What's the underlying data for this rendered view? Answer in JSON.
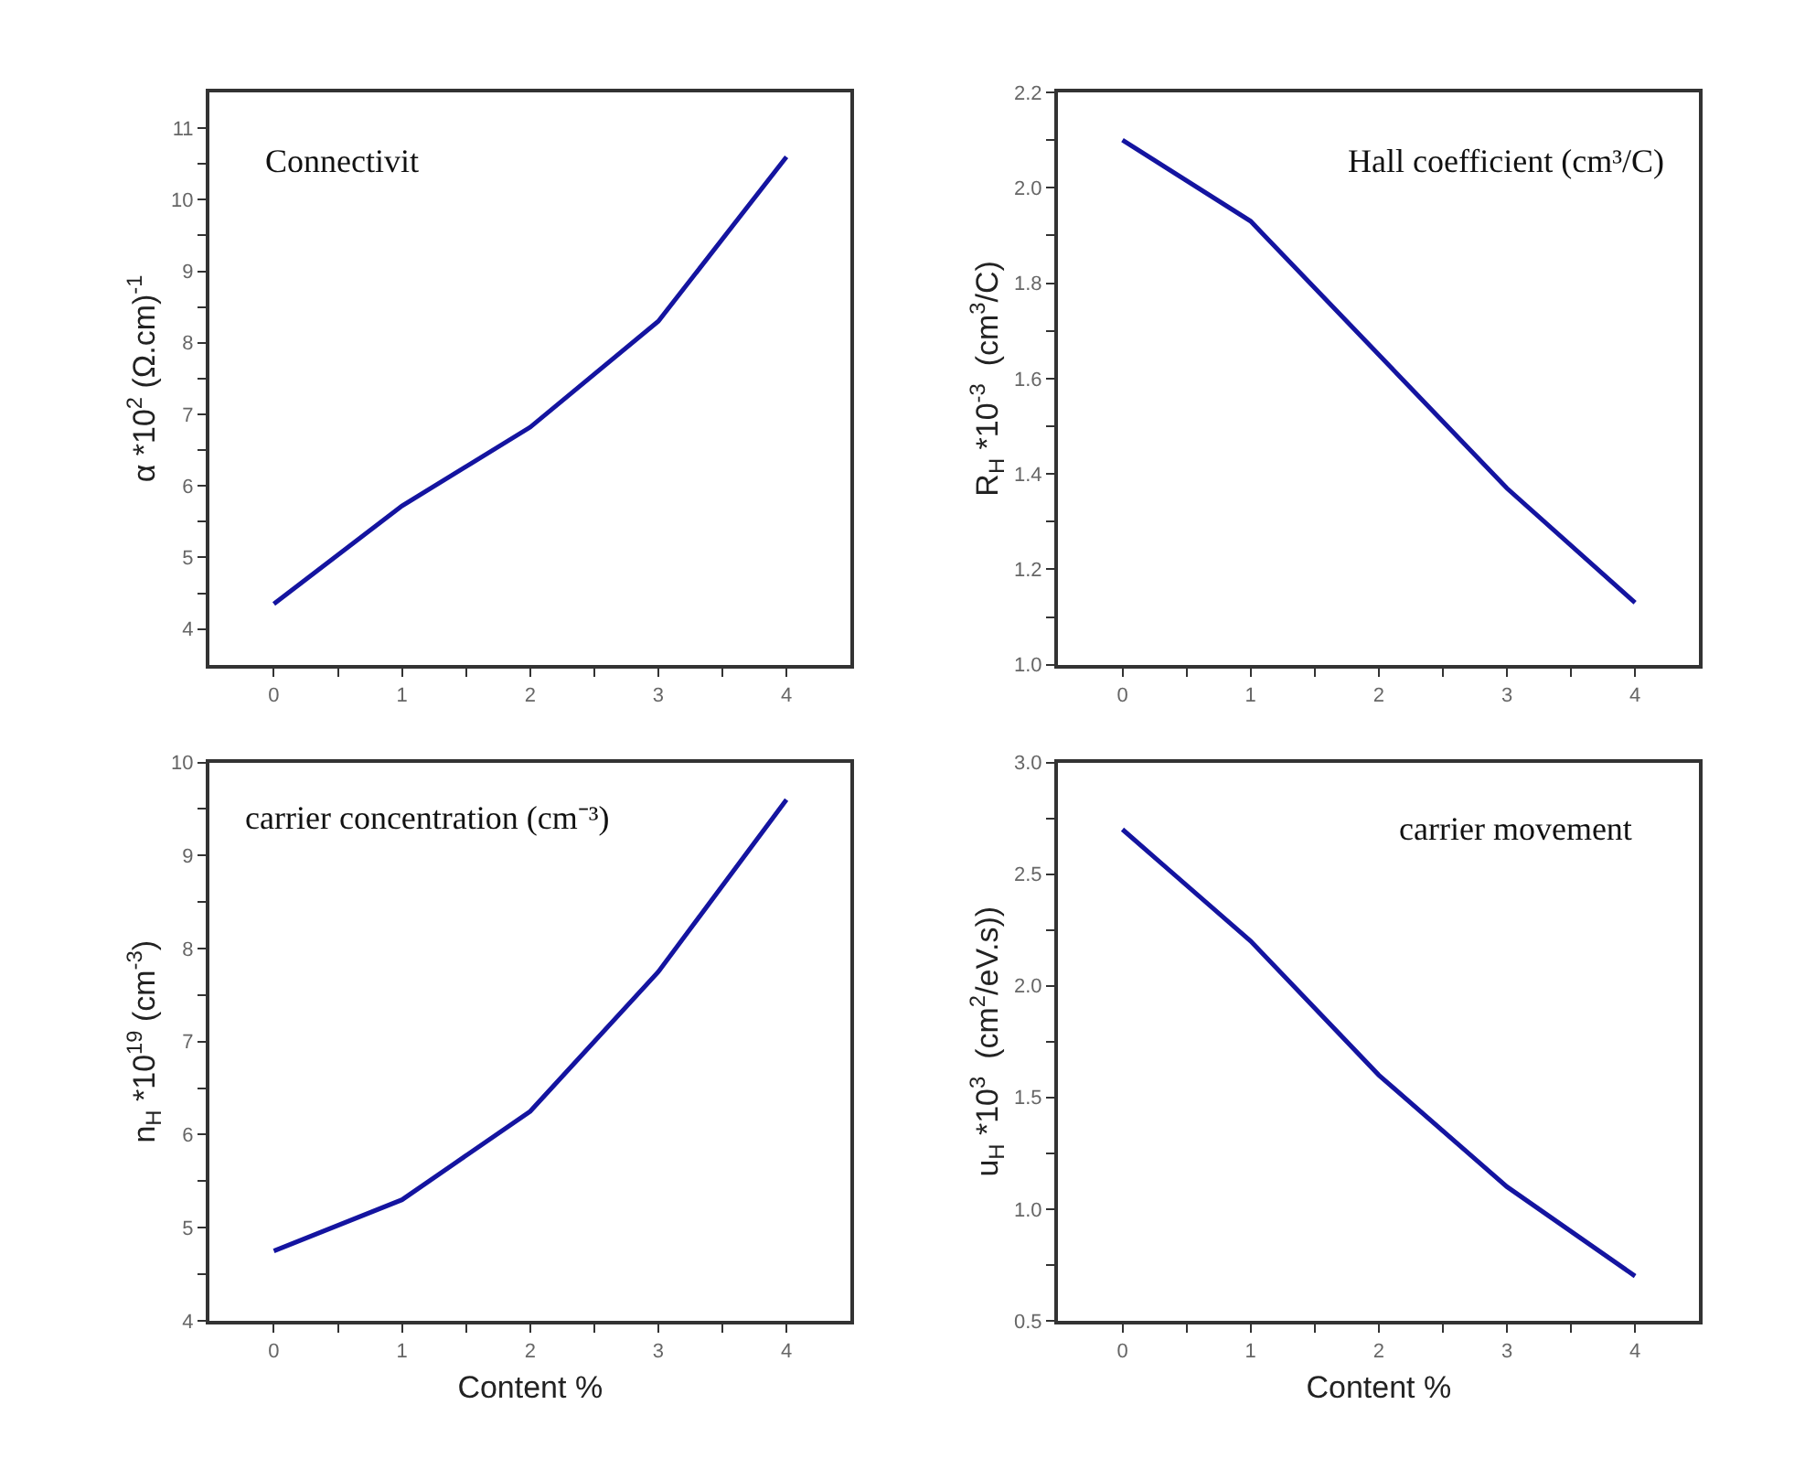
{
  "chart_data": [
    {
      "type": "line",
      "x": [
        0,
        1,
        2,
        3,
        4
      ],
      "ylabel": "α *10$^{2}$ (Ω.cm)$^{-1}$",
      "annotations": [
        "Connectivit"
      ],
      "series": [
        {
          "color": "#1414a0",
          "values": [
            4.35,
            5.72,
            6.82,
            8.3,
            10.6
          ]
        }
      ],
      "xlim": [
        -0.5,
        4.5
      ],
      "xticks": [
        0,
        {
          "value": 0.5,
          "label": null
        },
        1,
        {
          "value": 1.5,
          "label": null
        },
        2,
        {
          "value": 2.5,
          "label": null
        },
        3,
        {
          "value": 3.5,
          "label": null
        },
        4
      ],
      "ylim": [
        3.5,
        11.5
      ],
      "yticks": [
        4,
        {
          "value": 4.5,
          "label": null
        },
        5,
        {
          "value": 5.5,
          "label": null
        },
        6,
        {
          "value": 6.5,
          "label": null
        },
        7,
        {
          "value": 7.5,
          "label": null
        },
        8,
        {
          "value": 8.5,
          "label": null
        },
        9,
        {
          "value": 9.5,
          "label": null
        },
        10,
        {
          "value": 10.5,
          "label": null
        },
        11
      ],
      "marker": "none",
      "line_style": "solid"
    },
    {
      "type": "line",
      "x": [
        0,
        1,
        2,
        3,
        4
      ],
      "ylabel": "R$_{H}$ *10$^{-3}$  (cm$^{3}$/C)",
      "annotations": [
        "Hall coefficient (cm³/C)"
      ],
      "series": [
        {
          "color": "#1414a0",
          "values": [
            2.1,
            1.93,
            1.65,
            1.37,
            1.13
          ]
        }
      ],
      "xlim": [
        -0.5,
        4.5
      ],
      "xticks": [
        0,
        {
          "value": 0.5,
          "label": null
        },
        1,
        {
          "value": 1.5,
          "label": null
        },
        2,
        {
          "value": 2.5,
          "label": null
        },
        3,
        {
          "value": 3.5,
          "label": null
        },
        4
      ],
      "ylim": [
        1.0,
        2.2
      ],
      "yticks": [
        {
          "value": 1.0,
          "label": "1.0"
        },
        {
          "value": 1.1,
          "label": null
        },
        {
          "value": 1.2,
          "label": "1.2"
        },
        {
          "value": 1.3,
          "label": null
        },
        {
          "value": 1.4,
          "label": "1.4"
        },
        {
          "value": 1.5,
          "label": null
        },
        {
          "value": 1.6,
          "label": "1.6"
        },
        {
          "value": 1.7,
          "label": null
        },
        {
          "value": 1.8,
          "label": "1.8"
        },
        {
          "value": 1.9,
          "label": null
        },
        {
          "value": 2.0,
          "label": "2.0"
        },
        {
          "value": 2.1,
          "label": null
        },
        {
          "value": 2.2,
          "label": "2.2"
        }
      ],
      "marker": "none",
      "line_style": "solid"
    },
    {
      "type": "line",
      "x": [
        0,
        1,
        2,
        3,
        4
      ],
      "xlabel": "Content %",
      "ylabel": "n$_{H}$ *10$^{19}$ (cm$^{-3}$)",
      "annotations": [
        "carrier concentration (cm⁻³)"
      ],
      "series": [
        {
          "color": "#1414a0",
          "values": [
            4.75,
            5.3,
            6.25,
            7.75,
            9.6
          ]
        }
      ],
      "xlim": [
        -0.5,
        4.5
      ],
      "xticks": [
        0,
        {
          "value": 0.5,
          "label": null
        },
        1,
        {
          "value": 1.5,
          "label": null
        },
        2,
        {
          "value": 2.5,
          "label": null
        },
        3,
        {
          "value": 3.5,
          "label": null
        },
        4
      ],
      "ylim": [
        4,
        10
      ],
      "yticks": [
        4,
        {
          "value": 4.5,
          "label": null
        },
        5,
        {
          "value": 5.5,
          "label": null
        },
        6,
        {
          "value": 6.5,
          "label": null
        },
        7,
        {
          "value": 7.5,
          "label": null
        },
        8,
        {
          "value": 8.5,
          "label": null
        },
        9,
        {
          "value": 9.5,
          "label": null
        },
        10
      ],
      "marker": "none",
      "line_style": "solid"
    },
    {
      "type": "line",
      "x": [
        0,
        1,
        2,
        3,
        4
      ],
      "xlabel": "Content %",
      "ylabel": "u$_{H}$ *10$^{3}$  (cm$^{2}$/eV.s))",
      "annotations": [
        "carrier movement"
      ],
      "series": [
        {
          "color": "#1414a0",
          "values": [
            2.7,
            2.2,
            1.6,
            1.1,
            0.7
          ]
        }
      ],
      "xlim": [
        -0.5,
        4.5
      ],
      "xticks": [
        0,
        {
          "value": 0.5,
          "label": null
        },
        1,
        {
          "value": 1.5,
          "label": null
        },
        2,
        {
          "value": 2.5,
          "label": null
        },
        3,
        {
          "value": 3.5,
          "label": null
        },
        4
      ],
      "ylim": [
        0.5,
        3.0
      ],
      "yticks": [
        {
          "value": 0.5,
          "label": "0.5"
        },
        {
          "value": 0.75,
          "label": null
        },
        {
          "value": 1.0,
          "label": "1.0"
        },
        {
          "value": 1.25,
          "label": null
        },
        {
          "value": 1.5,
          "label": "1.5"
        },
        {
          "value": 1.75,
          "label": null
        },
        {
          "value": 2.0,
          "label": "2.0"
        },
        {
          "value": 2.25,
          "label": null
        },
        {
          "value": 2.5,
          "label": "2.5"
        },
        {
          "value": 2.75,
          "label": null
        },
        {
          "value": 3.0,
          "label": "3.0"
        }
      ],
      "marker": "none",
      "line_style": "solid"
    }
  ]
}
